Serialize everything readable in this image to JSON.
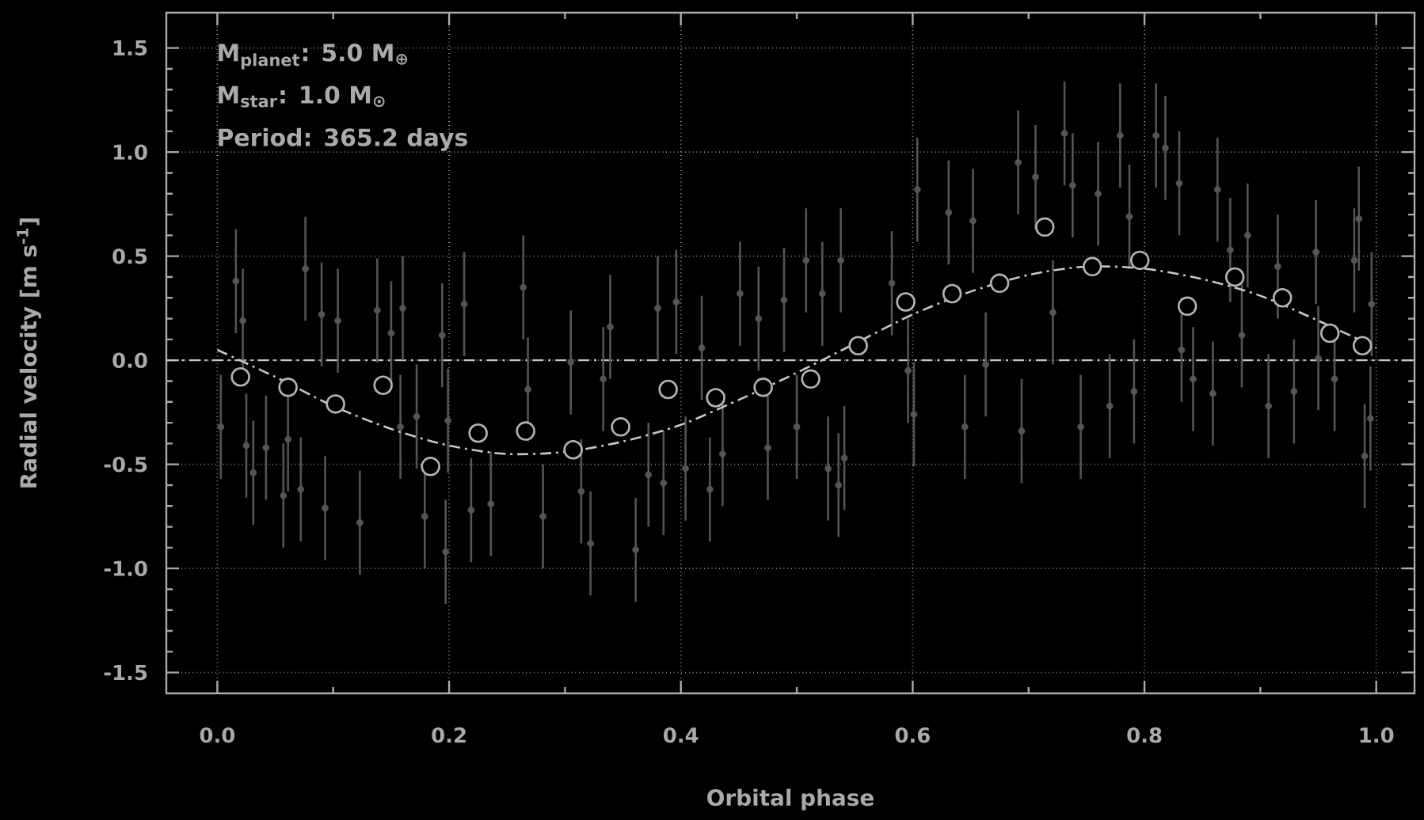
{
  "chart_data": {
    "type": "scatter",
    "xlabel": "Orbital phase",
    "ylabel": "Radial velocity [m s$^{-1}$]",
    "annotations": [
      "M$_{planet}$: 5.0 M$_{⊕}$",
      "M$_{star}$:  1.0 M$_{⊙}$",
      "Period:  365.2 days"
    ],
    "xlim": [
      -0.044,
      1.033
    ],
    "ylim": [
      -1.6,
      1.67
    ],
    "xticks": [
      {
        "value": 0,
        "label": "0.0"
      },
      {
        "value": 0.2,
        "label": "0.2"
      },
      {
        "value": 0.4,
        "label": "0.4"
      },
      {
        "value": 0.6,
        "label": "0.6"
      },
      {
        "value": 0.8,
        "label": "0.8"
      },
      {
        "value": 1,
        "label": "1.0"
      }
    ],
    "yticks": [
      {
        "value": -1.5,
        "label": "-1.5"
      },
      {
        "value": -1,
        "label": "-1.0"
      },
      {
        "value": -0.5,
        "label": "-0.5"
      },
      {
        "value": 0,
        "label": "0.0"
      },
      {
        "value": 0.5,
        "label": "0.5"
      },
      {
        "value": 1,
        "label": "1.0"
      },
      {
        "value": 1.5,
        "label": "1.5"
      }
    ],
    "grid": true,
    "ref_lines": [
      {
        "axis": "y",
        "value": 0,
        "color": "#c8c8c8",
        "line_style": "dashed"
      }
    ],
    "series": [
      {
        "color": "#555555",
        "marker": "circle",
        "x": [
          0.016,
          0.022,
          0.003,
          0.025,
          0.031,
          0.042,
          0.057,
          0.061,
          0.072,
          0.076,
          0.09,
          0.093,
          0.104,
          0.123,
          0.138,
          0.15,
          0.16,
          0.158,
          0.172,
          0.179,
          0.194,
          0.197,
          0.199,
          0.213,
          0.219,
          0.236,
          0.264,
          0.268,
          0.281,
          0.305,
          0.314,
          0.322,
          0.333,
          0.339,
          0.361,
          0.372,
          0.38,
          0.385,
          0.396,
          0.404,
          0.418,
          0.425,
          0.436,
          0.451,
          0.467,
          0.475,
          0.489,
          0.5,
          0.508,
          0.522,
          0.527,
          0.538,
          0.536,
          0.541,
          0.582,
          0.596,
          0.601,
          0.604,
          0.631,
          0.645,
          0.652,
          0.663,
          0.691,
          0.694,
          0.706,
          0.721,
          0.731,
          0.738,
          0.745,
          0.76,
          0.77,
          0.779,
          0.787,
          0.791,
          0.81,
          0.818,
          0.83,
          0.832,
          0.842,
          0.859,
          0.863,
          0.874,
          0.889,
          0.884,
          0.907,
          0.915,
          0.929,
          0.948,
          0.95,
          0.964,
          0.985,
          0.981,
          0.99,
          0.996,
          0.995
        ],
        "values": [
          0.38,
          0.19,
          -0.32,
          -0.41,
          -0.54,
          -0.42,
          -0.65,
          -0.38,
          -0.62,
          0.44,
          0.22,
          -0.71,
          0.19,
          -0.78,
          0.24,
          0.13,
          0.25,
          -0.32,
          -0.27,
          -0.75,
          0.12,
          -0.92,
          -0.29,
          0.27,
          -0.72,
          -0.69,
          0.35,
          -0.14,
          -0.75,
          -0.01,
          -0.63,
          -0.88,
          -0.09,
          0.16,
          -0.91,
          -0.55,
          0.25,
          -0.59,
          0.28,
          -0.52,
          0.06,
          -0.62,
          -0.45,
          0.32,
          0.2,
          -0.42,
          0.29,
          -0.32,
          0.48,
          0.32,
          -0.52,
          0.48,
          -0.6,
          -0.47,
          0.37,
          -0.05,
          -0.26,
          0.82,
          0.71,
          -0.32,
          0.67,
          -0.02,
          0.95,
          -0.34,
          0.88,
          0.23,
          1.09,
          0.84,
          -0.32,
          0.8,
          -0.22,
          1.08,
          0.69,
          -0.15,
          1.08,
          1.02,
          0.85,
          0.05,
          -0.09,
          -0.16,
          0.82,
          0.53,
          0.6,
          0.12,
          -0.22,
          0.45,
          -0.15,
          0.52,
          0.01,
          -0.09,
          0.68,
          0.48,
          -0.46,
          0.27,
          -0.28
        ],
        "errors": [
          0.25,
          0.25,
          0.25,
          0.25,
          0.25,
          0.25,
          0.25,
          0.25,
          0.25,
          0.25,
          0.25,
          0.25,
          0.25,
          0.25,
          0.25,
          0.25,
          0.25,
          0.25,
          0.25,
          0.25,
          0.25,
          0.25,
          0.25,
          0.25,
          0.25,
          0.25,
          0.25,
          0.25,
          0.25,
          0.25,
          0.25,
          0.25,
          0.25,
          0.25,
          0.25,
          0.25,
          0.25,
          0.25,
          0.25,
          0.25,
          0.25,
          0.25,
          0.25,
          0.25,
          0.25,
          0.25,
          0.25,
          0.25,
          0.25,
          0.25,
          0.25,
          0.25,
          0.25,
          0.25,
          0.25,
          0.25,
          0.25,
          0.25,
          0.25,
          0.25,
          0.25,
          0.25,
          0.25,
          0.25,
          0.25,
          0.25,
          0.25,
          0.25,
          0.25,
          0.25,
          0.25,
          0.25,
          0.25,
          0.25,
          0.25,
          0.25,
          0.25,
          0.25,
          0.25,
          0.25,
          0.25,
          0.25,
          0.25,
          0.25,
          0.25,
          0.25,
          0.25,
          0.25,
          0.25,
          0.25,
          0.25,
          0.25,
          0.25,
          0.25,
          0.25
        ]
      },
      {
        "type": "line",
        "color": "#c8c8c8",
        "marker": "none",
        "line_style": "dashed",
        "x": [
          0,
          0.05,
          0.1,
          0.15,
          0.2,
          0.25,
          0.3,
          0.35,
          0.4,
          0.45,
          0.5,
          0.55,
          0.6,
          0.65,
          0.7,
          0.75,
          0.8,
          0.85,
          0.9,
          0.95,
          1.0
        ],
        "values": [
          0.05,
          -0.08,
          -0.22,
          -0.33,
          -0.41,
          -0.45,
          -0.44,
          -0.39,
          -0.31,
          -0.19,
          -0.06,
          0.08,
          0.22,
          0.33,
          0.41,
          0.45,
          0.44,
          0.39,
          0.31,
          0.19,
          0.06
        ]
      },
      {
        "color": "#b4b4b4",
        "marker": "circle",
        "x": [
          0.02,
          0.061,
          0.102,
          0.143,
          0.184,
          0.225,
          0.266,
          0.307,
          0.348,
          0.389,
          0.43,
          0.471,
          0.512,
          0.553,
          0.594,
          0.634,
          0.675,
          0.714,
          0.755,
          0.796,
          0.837,
          0.878,
          0.919,
          0.96,
          0.988
        ],
        "values": [
          -0.08,
          -0.13,
          -0.21,
          -0.12,
          -0.51,
          -0.35,
          -0.34,
          -0.43,
          -0.32,
          -0.14,
          -0.18,
          -0.13,
          -0.09,
          0.07,
          0.28,
          0.32,
          0.37,
          0.64,
          0.45,
          0.48,
          0.26,
          0.4,
          0.3,
          0.13,
          0.07
        ]
      }
    ]
  }
}
